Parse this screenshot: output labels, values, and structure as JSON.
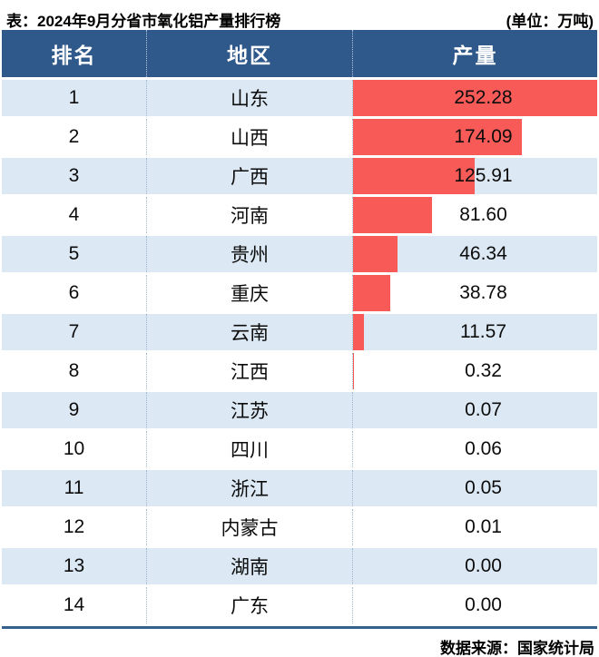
{
  "page": {
    "title": "表：2024年9月分省市氧化铝产量排行榜",
    "unit_label": "(单位：万吨)",
    "source": "数据来源：国家统计局"
  },
  "table": {
    "headers": [
      "排名",
      "地区",
      "产量"
    ],
    "rows": [
      {
        "rank": "1",
        "region": "山东",
        "value": "252.28"
      },
      {
        "rank": "2",
        "region": "山西",
        "value": "174.09"
      },
      {
        "rank": "3",
        "region": "广西",
        "value": "125.91"
      },
      {
        "rank": "4",
        "region": "河南",
        "value": "81.60"
      },
      {
        "rank": "5",
        "region": "贵州",
        "value": "46.34"
      },
      {
        "rank": "6",
        "region": "重庆",
        "value": "38.78"
      },
      {
        "rank": "7",
        "region": "云南",
        "value": "11.57"
      },
      {
        "rank": "8",
        "region": "江西",
        "value": "0.32"
      },
      {
        "rank": "9",
        "region": "江苏",
        "value": "0.07"
      },
      {
        "rank": "10",
        "region": "四川",
        "value": "0.06"
      },
      {
        "rank": "11",
        "region": "浙江",
        "value": "0.05"
      },
      {
        "rank": "12",
        "region": "内蒙古",
        "value": "0.01"
      },
      {
        "rank": "13",
        "region": "湖南",
        "value": "0.00"
      },
      {
        "rank": "14",
        "region": "广东",
        "value": "0.00"
      }
    ]
  },
  "chart_data": {
    "type": "bar",
    "orientation": "horizontal",
    "title": "2024年9月分省市氧化铝产量排行榜",
    "unit": "万吨",
    "categories": [
      "山东",
      "山西",
      "广西",
      "河南",
      "贵州",
      "重庆",
      "云南",
      "江西",
      "江苏",
      "四川",
      "浙江",
      "内蒙古",
      "湖南",
      "广东"
    ],
    "values": [
      252.28,
      174.09,
      125.91,
      81.6,
      46.34,
      38.78,
      11.57,
      0.32,
      0.07,
      0.06,
      0.05,
      0.01,
      0.0,
      0.0
    ],
    "max_value": 252.28,
    "value_labels_visible": true,
    "grid": false,
    "source": "国家统计局"
  },
  "colors": {
    "header_bg": "#30598B",
    "row_alt_bg": "#DCE9F5",
    "row_bg": "#FFFFFF",
    "bar": "#F85B57",
    "footer_line": "#35618C",
    "header_text": "#FFFFFF",
    "body_text": "#0C0C0C"
  }
}
